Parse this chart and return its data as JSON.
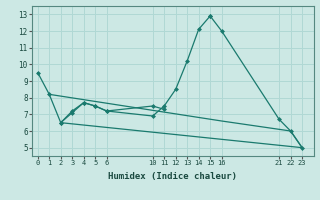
{
  "xlabel": "Humidex (Indice chaleur)",
  "bg_color": "#cce8e4",
  "line_color": "#1a7a6e",
  "grid_color": "#b0d8d4",
  "xlim": [
    -0.5,
    24.0
  ],
  "ylim": [
    4.5,
    13.5
  ],
  "xticks": [
    0,
    1,
    2,
    3,
    4,
    5,
    6,
    10,
    11,
    12,
    13,
    14,
    15,
    16,
    21,
    22,
    23
  ],
  "yticks": [
    5,
    6,
    7,
    8,
    9,
    10,
    11,
    12,
    13
  ],
  "line1_x": [
    0,
    1,
    2,
    3,
    4,
    5,
    6,
    10,
    11,
    12,
    13,
    14,
    15
  ],
  "line1_y": [
    9.5,
    8.2,
    6.5,
    7.1,
    7.7,
    7.5,
    7.2,
    6.9,
    7.5,
    8.5,
    10.2,
    12.1,
    12.9
  ],
  "line2_x": [
    2,
    3,
    4,
    5,
    6,
    10,
    11
  ],
  "line2_y": [
    6.5,
    7.2,
    7.7,
    7.5,
    7.2,
    7.5,
    7.3
  ],
  "line3_x": [
    0,
    15,
    21
  ],
  "line3_y": [
    9.5,
    12.9,
    6.7
  ],
  "line4_x": [
    1,
    16,
    22,
    23
  ],
  "line4_y": [
    8.2,
    6.6,
    6.0,
    5.0
  ],
  "line5_x": [
    2,
    23
  ],
  "line5_y": [
    6.5,
    5.0
  ],
  "line6_x": [
    15,
    16,
    21,
    22,
    23
  ],
  "line6_y": [
    12.9,
    12.0,
    6.7,
    6.0,
    5.0
  ]
}
